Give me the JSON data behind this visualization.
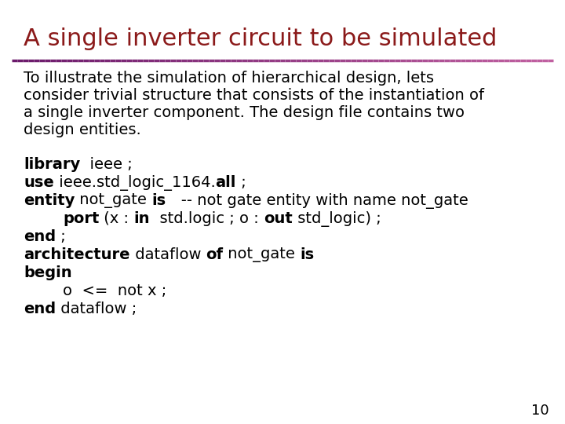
{
  "title": "A single inverter circuit to be simulated",
  "title_color": "#8B1A1A",
  "title_fontsize": 22,
  "bg_color": "#FFFFFF",
  "separator_color_left": "#6B1A6B",
  "separator_color_right": "#C060A0",
  "body_fontsize": 14,
  "code_fontsize": 14,
  "page_number": "10",
  "para_lines": [
    "To illustrate the simulation of hierarchical design, lets",
    "consider trivial structure that consists of the instantiation of",
    "a single inverter component. The design file contains two",
    "design entities."
  ],
  "code_lines": [
    [
      {
        "t": "library",
        "b": true
      },
      {
        "t": "  ieee ;",
        "b": false
      }
    ],
    [
      {
        "t": "use",
        "b": true
      },
      {
        "t": " ieee.std_logic_1164.",
        "b": false
      },
      {
        "t": "all",
        "b": true
      },
      {
        "t": " ;",
        "b": false
      }
    ],
    [
      {
        "t": "entity",
        "b": true
      },
      {
        "t": " not_gate ",
        "b": false
      },
      {
        "t": "is",
        "b": true
      },
      {
        "t": "   -- not gate entity with name not_gate",
        "b": false
      }
    ],
    [
      {
        "t": "        ",
        "b": false
      },
      {
        "t": "port",
        "b": true
      },
      {
        "t": " (x : ",
        "b": false
      },
      {
        "t": "in",
        "b": true
      },
      {
        "t": "  std.logic ; o : ",
        "b": false
      },
      {
        "t": "out",
        "b": true
      },
      {
        "t": " std_logic) ;",
        "b": false
      }
    ],
    [
      {
        "t": "end",
        "b": true
      },
      {
        "t": " ;",
        "b": false
      }
    ],
    [
      {
        "t": "architecture",
        "b": true
      },
      {
        "t": " dataflow ",
        "b": false
      },
      {
        "t": "of",
        "b": true
      },
      {
        "t": " not_gate ",
        "b": false
      },
      {
        "t": "is",
        "b": true
      }
    ],
    [
      {
        "t": "begin",
        "b": true
      }
    ],
    [
      {
        "t": "        o  <=  not x ;",
        "b": false
      }
    ],
    [
      {
        "t": "end",
        "b": true
      },
      {
        "t": " dataflow ;",
        "b": false
      }
    ]
  ]
}
